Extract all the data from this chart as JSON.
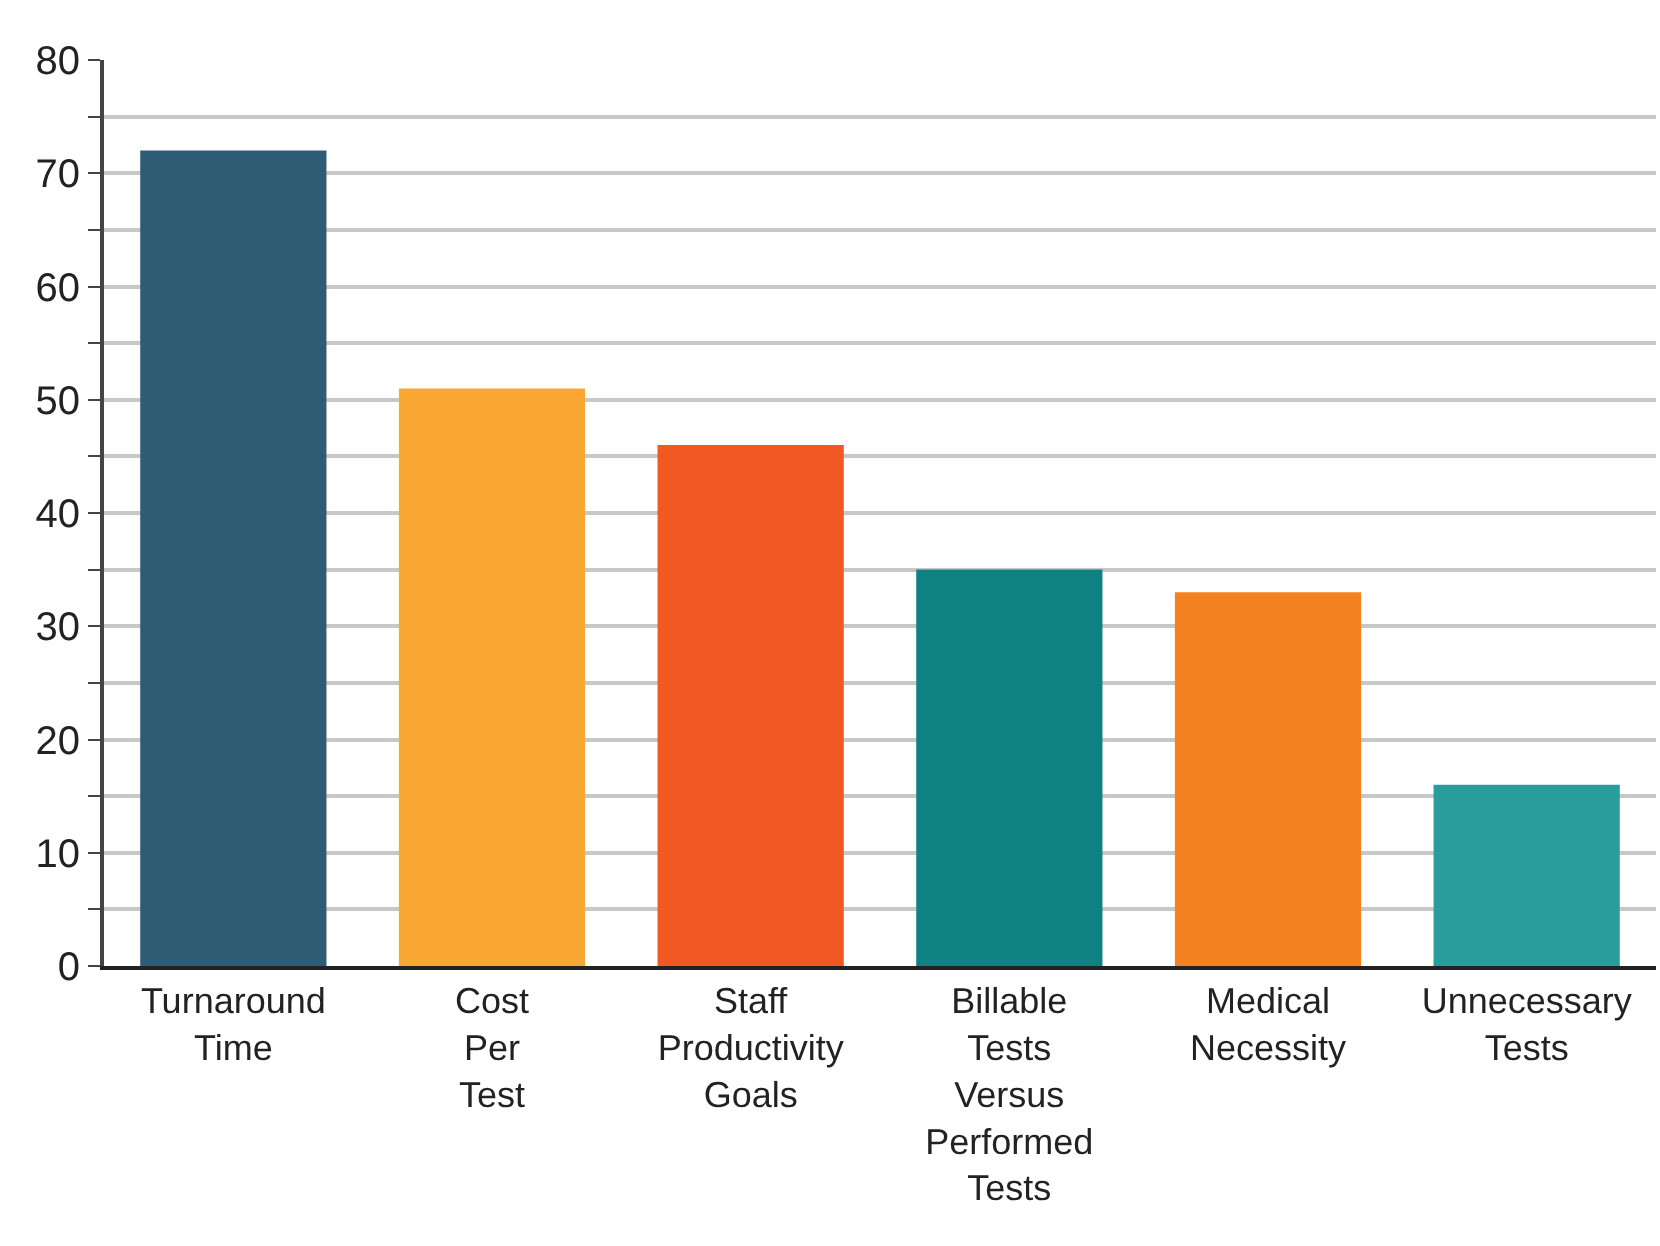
{
  "chart_data": {
    "type": "bar",
    "categories": [
      "Turnaround Time",
      "Cost Per Test",
      "Staff Productivity Goals",
      "Billable Tests Versus Performed Tests",
      "Medical Necessity",
      "Unnecessary Tests"
    ],
    "values": [
      72,
      51,
      46,
      35,
      33,
      16
    ],
    "colors": [
      "#2e5c75",
      "#f9a933",
      "#f05a22",
      "#0f8183",
      "#f58220",
      "#299c9c"
    ],
    "ylim": [
      0,
      80
    ],
    "yticks": [
      0,
      {
        "value": 5,
        "label": null
      },
      10,
      {
        "value": 15,
        "label": null
      },
      20,
      {
        "value": 25,
        "label": null
      },
      30,
      {
        "value": 35,
        "label": null
      },
      40,
      {
        "value": 45,
        "label": null
      },
      50,
      {
        "value": 55,
        "label": null
      },
      60,
      {
        "value": 65,
        "label": null
      },
      70,
      {
        "value": 75,
        "label": null
      },
      80
    ],
    "grid": "y"
  }
}
